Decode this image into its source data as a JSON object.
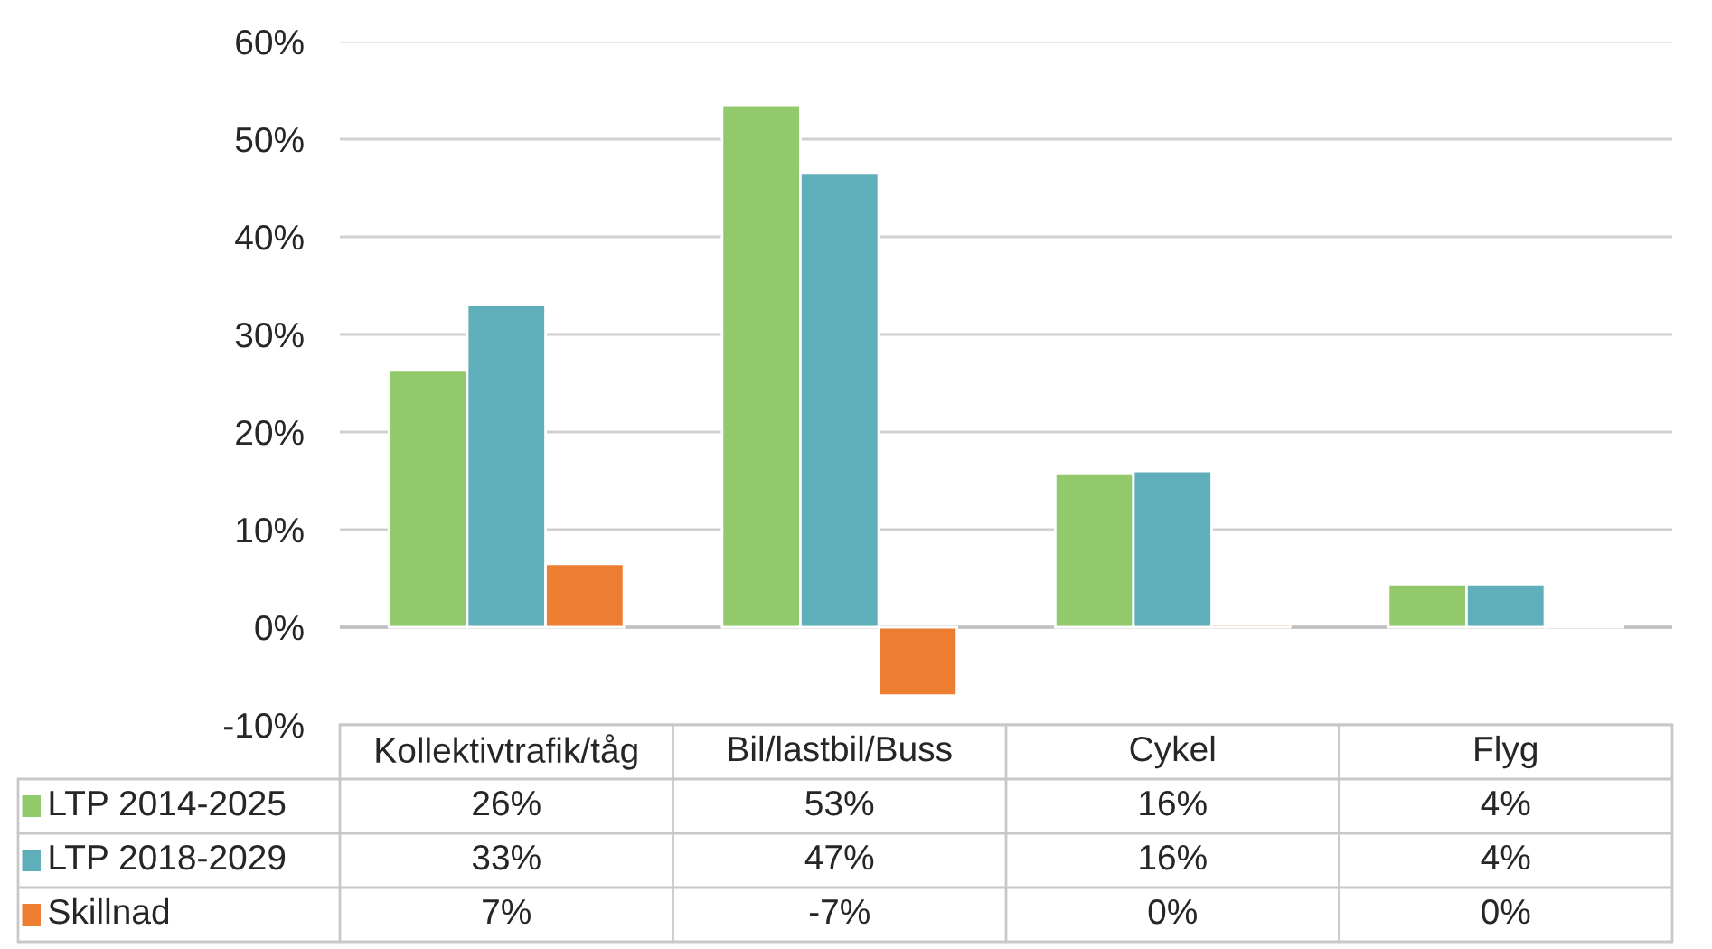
{
  "chart_data": {
    "type": "bar",
    "categories": [
      "Kollektivtrafik/tåg",
      "Bil/lastbil/Buss",
      "Cykel",
      "Flyg"
    ],
    "series": [
      {
        "name": "LTP 2014-2025",
        "color": "#92c96b",
        "values": [
          26.3,
          53.5,
          15.8,
          4.4
        ],
        "value_labels": [
          "26%",
          "53%",
          "16%",
          "4%"
        ]
      },
      {
        "name": "LTP 2018-2029",
        "color": "#5fafba",
        "values": [
          33.0,
          46.5,
          16.0,
          4.4
        ],
        "value_labels": [
          "33%",
          "47%",
          "16%",
          "4%"
        ]
      },
      {
        "name": "Skillnad",
        "color": "#ed7d31",
        "values": [
          6.5,
          -7.0,
          0.3,
          0.1
        ],
        "value_labels": [
          "7%",
          "-7%",
          "0%",
          "0%"
        ]
      }
    ],
    "ylim": [
      -10,
      60
    ],
    "yticks": [
      {
        "value": -10,
        "label": "-10%"
      },
      {
        "value": 0,
        "label": "0%"
      },
      {
        "value": 10,
        "label": "10%"
      },
      {
        "value": 20,
        "label": "20%"
      },
      {
        "value": 30,
        "label": "30%"
      },
      {
        "value": 40,
        "label": "40%"
      },
      {
        "value": 50,
        "label": "50%"
      },
      {
        "value": 60,
        "label": "60%"
      }
    ],
    "grid": "y",
    "legend": "bottom left"
  }
}
